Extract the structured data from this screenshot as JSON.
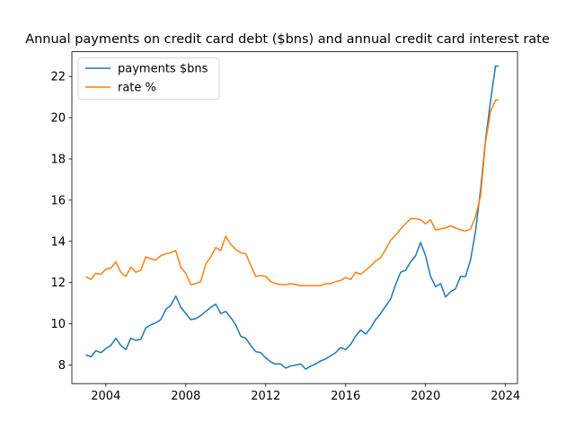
{
  "chart_data": {
    "type": "line",
    "title": "Annual payments on credit card debt ($bns) and annual credit card interest rate",
    "xlabel": "",
    "ylabel": "",
    "xlim": [
      2002.3,
      2024.6
    ],
    "ylim": [
      7.1,
      23.2
    ],
    "x_ticks": [
      2004,
      2008,
      2012,
      2016,
      2020,
      2024
    ],
    "y_ticks": [
      8,
      10,
      12,
      14,
      16,
      18,
      20,
      22
    ],
    "grid": false,
    "legend_position": "top-left",
    "series": [
      {
        "name": "payments $bns",
        "color": "#1f77b4",
        "points": [
          [
            2003.0,
            8.5
          ],
          [
            2003.25,
            8.4
          ],
          [
            2003.5,
            8.7
          ],
          [
            2003.75,
            8.6
          ],
          [
            2004.0,
            8.8
          ],
          [
            2004.25,
            8.95
          ],
          [
            2004.5,
            9.3
          ],
          [
            2004.75,
            8.95
          ],
          [
            2005.0,
            8.75
          ],
          [
            2005.25,
            9.3
          ],
          [
            2005.5,
            9.2
          ],
          [
            2005.75,
            9.25
          ],
          [
            2006.0,
            9.8
          ],
          [
            2006.25,
            9.95
          ],
          [
            2006.5,
            10.05
          ],
          [
            2006.75,
            10.2
          ],
          [
            2007.0,
            10.7
          ],
          [
            2007.25,
            10.9
          ],
          [
            2007.5,
            11.35
          ],
          [
            2007.75,
            10.8
          ],
          [
            2008.0,
            10.5
          ],
          [
            2008.25,
            10.2
          ],
          [
            2008.5,
            10.25
          ],
          [
            2008.75,
            10.4
          ],
          [
            2009.0,
            10.6
          ],
          [
            2009.25,
            10.8
          ],
          [
            2009.5,
            10.95
          ],
          [
            2009.75,
            10.5
          ],
          [
            2010.0,
            10.6
          ],
          [
            2010.25,
            10.3
          ],
          [
            2010.5,
            9.95
          ],
          [
            2010.75,
            9.4
          ],
          [
            2011.0,
            9.3
          ],
          [
            2011.25,
            8.95
          ],
          [
            2011.5,
            8.65
          ],
          [
            2011.75,
            8.6
          ],
          [
            2012.0,
            8.35
          ],
          [
            2012.25,
            8.15
          ],
          [
            2012.5,
            8.05
          ],
          [
            2012.75,
            8.05
          ],
          [
            2013.0,
            7.85
          ],
          [
            2013.25,
            7.95
          ],
          [
            2013.5,
            8.0
          ],
          [
            2013.75,
            8.05
          ],
          [
            2014.0,
            7.8
          ],
          [
            2014.25,
            7.95
          ],
          [
            2014.5,
            8.05
          ],
          [
            2014.75,
            8.2
          ],
          [
            2015.0,
            8.3
          ],
          [
            2015.25,
            8.45
          ],
          [
            2015.5,
            8.6
          ],
          [
            2015.75,
            8.85
          ],
          [
            2016.0,
            8.75
          ],
          [
            2016.25,
            9.0
          ],
          [
            2016.5,
            9.4
          ],
          [
            2016.75,
            9.7
          ],
          [
            2017.0,
            9.5
          ],
          [
            2017.25,
            9.8
          ],
          [
            2017.5,
            10.2
          ],
          [
            2017.75,
            10.5
          ],
          [
            2018.0,
            10.85
          ],
          [
            2018.25,
            11.2
          ],
          [
            2018.5,
            11.9
          ],
          [
            2018.75,
            12.5
          ],
          [
            2019.0,
            12.6
          ],
          [
            2019.25,
            13.0
          ],
          [
            2019.5,
            13.3
          ],
          [
            2019.75,
            13.95
          ],
          [
            2020.0,
            13.3
          ],
          [
            2020.25,
            12.3
          ],
          [
            2020.5,
            11.8
          ],
          [
            2020.75,
            11.95
          ],
          [
            2021.0,
            11.3
          ],
          [
            2021.25,
            11.55
          ],
          [
            2021.5,
            11.7
          ],
          [
            2021.75,
            12.3
          ],
          [
            2022.0,
            12.3
          ],
          [
            2022.25,
            13.1
          ],
          [
            2022.5,
            14.5
          ],
          [
            2022.75,
            16.5
          ],
          [
            2023.0,
            18.9
          ],
          [
            2023.25,
            20.8
          ],
          [
            2023.5,
            22.5
          ],
          [
            2023.65,
            22.5
          ]
        ]
      },
      {
        "name": "rate %",
        "color": "#ff7f0e",
        "points": [
          [
            2003.0,
            12.3
          ],
          [
            2003.25,
            12.15
          ],
          [
            2003.5,
            12.45
          ],
          [
            2003.75,
            12.4
          ],
          [
            2004.0,
            12.65
          ],
          [
            2004.25,
            12.7
          ],
          [
            2004.5,
            13.0
          ],
          [
            2004.75,
            12.5
          ],
          [
            2005.0,
            12.3
          ],
          [
            2005.25,
            12.75
          ],
          [
            2005.5,
            12.5
          ],
          [
            2005.75,
            12.6
          ],
          [
            2006.0,
            13.25
          ],
          [
            2006.25,
            13.15
          ],
          [
            2006.5,
            13.1
          ],
          [
            2006.75,
            13.3
          ],
          [
            2007.0,
            13.4
          ],
          [
            2007.25,
            13.45
          ],
          [
            2007.5,
            13.55
          ],
          [
            2007.75,
            12.75
          ],
          [
            2008.0,
            12.45
          ],
          [
            2008.25,
            11.9
          ],
          [
            2008.5,
            11.95
          ],
          [
            2008.75,
            12.05
          ],
          [
            2009.0,
            12.9
          ],
          [
            2009.25,
            13.25
          ],
          [
            2009.5,
            13.7
          ],
          [
            2009.75,
            13.55
          ],
          [
            2010.0,
            14.25
          ],
          [
            2010.25,
            13.85
          ],
          [
            2010.5,
            13.6
          ],
          [
            2010.75,
            13.45
          ],
          [
            2011.0,
            13.4
          ],
          [
            2011.25,
            12.85
          ],
          [
            2011.5,
            12.3
          ],
          [
            2011.75,
            12.35
          ],
          [
            2012.0,
            12.3
          ],
          [
            2012.25,
            12.05
          ],
          [
            2012.5,
            11.95
          ],
          [
            2012.75,
            11.9
          ],
          [
            2013.0,
            11.9
          ],
          [
            2013.25,
            11.95
          ],
          [
            2013.5,
            11.9
          ],
          [
            2013.75,
            11.85
          ],
          [
            2014.0,
            11.85
          ],
          [
            2014.25,
            11.85
          ],
          [
            2014.5,
            11.85
          ],
          [
            2014.75,
            11.85
          ],
          [
            2015.0,
            11.95
          ],
          [
            2015.25,
            11.95
          ],
          [
            2015.5,
            12.05
          ],
          [
            2015.75,
            12.1
          ],
          [
            2016.0,
            12.25
          ],
          [
            2016.25,
            12.15
          ],
          [
            2016.5,
            12.5
          ],
          [
            2016.75,
            12.4
          ],
          [
            2017.0,
            12.6
          ],
          [
            2017.25,
            12.8
          ],
          [
            2017.5,
            13.05
          ],
          [
            2017.75,
            13.2
          ],
          [
            2018.0,
            13.6
          ],
          [
            2018.25,
            14.05
          ],
          [
            2018.5,
            14.3
          ],
          [
            2018.75,
            14.6
          ],
          [
            2019.0,
            14.85
          ],
          [
            2019.25,
            15.1
          ],
          [
            2019.5,
            15.1
          ],
          [
            2019.75,
            15.05
          ],
          [
            2020.0,
            14.85
          ],
          [
            2020.25,
            15.05
          ],
          [
            2020.5,
            14.55
          ],
          [
            2020.75,
            14.6
          ],
          [
            2021.0,
            14.65
          ],
          [
            2021.25,
            14.75
          ],
          [
            2021.5,
            14.65
          ],
          [
            2021.75,
            14.55
          ],
          [
            2022.0,
            14.5
          ],
          [
            2022.25,
            14.6
          ],
          [
            2022.5,
            15.2
          ],
          [
            2022.75,
            16.2
          ],
          [
            2023.0,
            18.8
          ],
          [
            2023.25,
            20.3
          ],
          [
            2023.5,
            20.85
          ],
          [
            2023.65,
            20.85
          ]
        ]
      }
    ]
  }
}
